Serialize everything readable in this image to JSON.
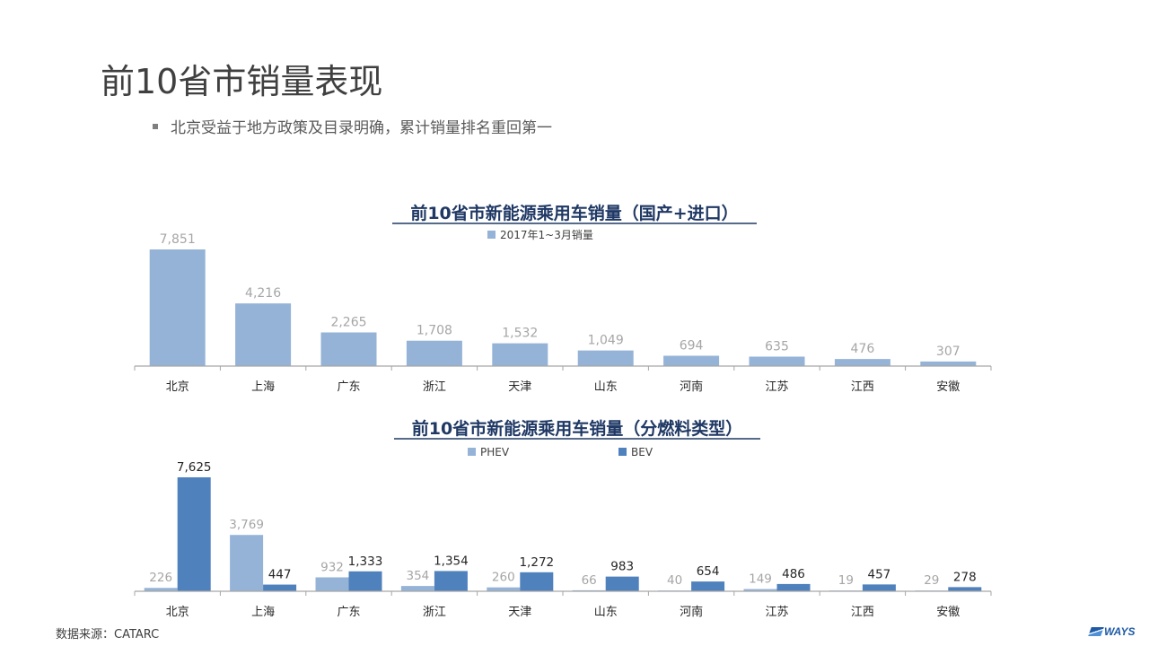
{
  "page": {
    "title": "前10省市销量表现",
    "bullet": "北京受益于地方政策及目录明确，累计销量排名重回第一",
    "source": "数据来源：CATARC",
    "logo_text": "WAYS"
  },
  "colors": {
    "total": "#95b3d7",
    "phev": "#95b3d7",
    "bev": "#4f81bd",
    "axis": "#a6a6a6",
    "label_gray": "#a6a6a6",
    "label_dark": "#262626",
    "title": "#1f3864"
  },
  "chart_data": [
    {
      "type": "bar",
      "title": "前10省市新能源乘用车销量（国产+进口）",
      "categories": [
        "北京",
        "上海",
        "广东",
        "浙江",
        "天津",
        "山东",
        "河南",
        "江苏",
        "江西",
        "安徽"
      ],
      "series": [
        {
          "name": "2017年1~3月销量",
          "values": [
            7851,
            4216,
            2265,
            1708,
            1532,
            1049,
            694,
            635,
            476,
            307
          ]
        }
      ],
      "value_labels": [
        "7,851",
        "4,216",
        "2,265",
        "1,708",
        "1,532",
        "1,049",
        "694",
        "635",
        "476",
        "307"
      ],
      "legend": "top-center",
      "ylim": [
        0,
        7851
      ]
    },
    {
      "type": "bar",
      "title": "前10省市新能源乘用车销量（分燃料类型）",
      "categories": [
        "北京",
        "上海",
        "广东",
        "浙江",
        "天津",
        "山东",
        "河南",
        "江苏",
        "江西",
        "安徽"
      ],
      "series": [
        {
          "name": "PHEV",
          "values": [
            226,
            3769,
            932,
            354,
            260,
            66,
            40,
            149,
            19,
            29
          ],
          "value_labels": [
            "226",
            "3,769",
            "932",
            "354",
            "260",
            "66",
            "40",
            "149",
            "19",
            "29"
          ]
        },
        {
          "name": "BEV",
          "values": [
            7625,
            447,
            1333,
            1354,
            1272,
            983,
            654,
            486,
            457,
            278
          ],
          "value_labels": [
            "7,625",
            "447",
            "1,333",
            "1,354",
            "1,272",
            "983",
            "654",
            "486",
            "457",
            "278"
          ]
        }
      ],
      "legend": "top-center",
      "ylim": [
        0,
        7625
      ]
    }
  ]
}
